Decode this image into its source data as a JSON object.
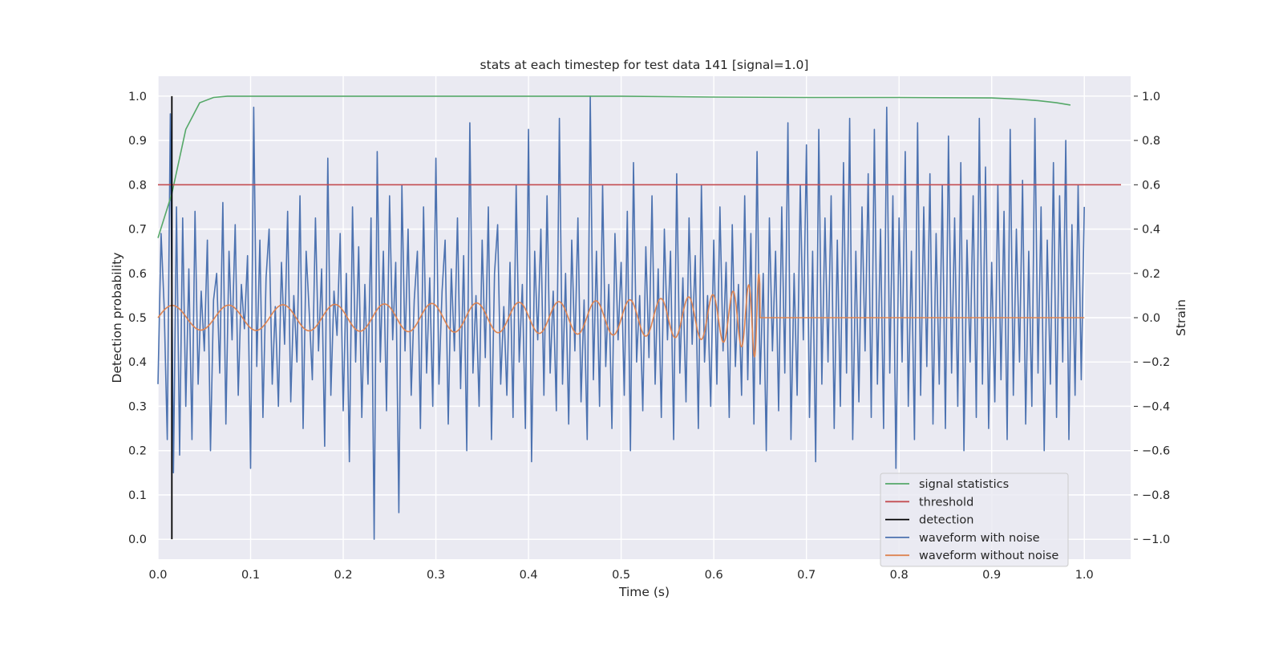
{
  "chart_data": {
    "type": "line",
    "title": "stats at each timestep for test data 141 [signal=1.0]",
    "xlabel": "Time (s)",
    "ylabel": "Detection probability",
    "ylabel_right": "Strain",
    "xlim": [
      0.0,
      1.05
    ],
    "ylim": [
      -0.045,
      1.045
    ],
    "ylim_right": [
      -1.0,
      1.0
    ],
    "x_ticks": [
      "0.0",
      "0.1",
      "0.2",
      "0.3",
      "0.4",
      "0.5",
      "0.6",
      "0.7",
      "0.8",
      "0.9",
      "1.0"
    ],
    "y_ticks": [
      "0.0",
      "0.1",
      "0.2",
      "0.3",
      "0.4",
      "0.5",
      "0.6",
      "0.7",
      "0.8",
      "0.9",
      "1.0"
    ],
    "y_ticks_right": [
      "−1.0",
      "−0.8",
      "−0.6",
      "−0.4",
      "−0.2",
      "0.0",
      "0.2",
      "0.4",
      "0.6",
      "0.8",
      "1.0"
    ],
    "grid": true,
    "legend_position": "lower-right",
    "series": [
      {
        "name": "signal statistics",
        "color": "#55a868",
        "axis": "left",
        "x": [
          0.0,
          0.015,
          0.03,
          0.045,
          0.06,
          0.075,
          0.1,
          0.2,
          0.3,
          0.4,
          0.5,
          0.6,
          0.7,
          0.8,
          0.9,
          0.93,
          0.95,
          0.97,
          0.985
        ],
        "y": [
          0.68,
          0.78,
          0.925,
          0.985,
          0.997,
          1.0,
          1.0,
          1.0,
          1.0,
          1.0,
          1.0,
          0.998,
          0.997,
          0.997,
          0.996,
          0.993,
          0.99,
          0.985,
          0.98
        ]
      },
      {
        "name": "threshold",
        "color": "#c44e52",
        "axis": "left",
        "x": [
          0.0,
          1.05
        ],
        "y": [
          0.8,
          0.8
        ]
      },
      {
        "name": "detection",
        "color": "#000000",
        "axis": "left",
        "x": [
          0.015,
          0.015
        ],
        "y": [
          0.0,
          1.0
        ]
      },
      {
        "name": "waveform with noise",
        "color": "#4c72b0",
        "axis": "right",
        "x_range": [
          0.0,
          1.0
        ],
        "y": [
          -0.3,
          0.38,
          0.05,
          -0.55,
          0.92,
          -0.7,
          0.5,
          -0.62,
          0.45,
          -0.4,
          0.22,
          -0.55,
          0.48,
          -0.3,
          0.12,
          -0.15,
          0.35,
          -0.6,
          0.08,
          0.2,
          -0.25,
          0.52,
          -0.48,
          0.3,
          -0.1,
          0.42,
          -0.35,
          0.15,
          -0.05,
          0.28,
          -0.68,
          0.95,
          -0.22,
          0.35,
          -0.45,
          0.18,
          0.4,
          -0.3,
          0.05,
          -0.4,
          0.25,
          -0.12,
          0.48,
          -0.38,
          0.1,
          -0.2,
          0.55,
          -0.5,
          0.3,
          0.02,
          -0.28,
          0.45,
          -0.15,
          0.22,
          -0.58,
          0.72,
          -0.35,
          0.12,
          -0.08,
          0.38,
          -0.42,
          0.2,
          -0.65,
          0.5,
          -0.2,
          0.32,
          -0.45,
          0.15,
          -0.3,
          0.45,
          -1.0,
          0.75,
          -0.2,
          0.3,
          -0.42,
          0.55,
          -0.1,
          0.25,
          -0.88,
          0.6,
          -0.15,
          0.4,
          -0.35,
          0.08,
          0.3,
          -0.5,
          0.5,
          -0.25,
          0.18,
          -0.4,
          0.72,
          -0.3,
          0.12,
          0.35,
          -0.48,
          0.22,
          -0.15,
          0.45,
          -0.32,
          0.28,
          -0.6,
          0.88,
          -0.25,
          0.1,
          -0.4,
          0.35,
          -0.18,
          0.5,
          -0.55,
          0.2,
          0.42,
          -0.3,
          0.05,
          -0.35,
          0.25,
          -0.45,
          0.6,
          -0.2,
          0.15,
          -0.5,
          0.85,
          -0.65,
          0.3,
          -0.1,
          0.4,
          -0.35,
          0.55,
          -0.25,
          0.12,
          -0.42,
          0.9,
          -0.3,
          0.2,
          -0.48,
          0.35,
          -0.15,
          0.45,
          -0.38,
          0.08,
          -0.55,
          1.0,
          -0.28,
          0.3,
          -0.4,
          0.6,
          -0.22,
          0.15,
          -0.5,
          0.38,
          -0.1,
          0.25,
          -0.35,
          0.48,
          -0.6,
          0.7,
          -0.2,
          0.1,
          -0.42,
          0.32,
          -0.18,
          0.55,
          -0.3,
          0.22,
          -0.45,
          0.4,
          -0.1,
          0.3,
          -0.55,
          0.65,
          -0.25,
          0.18,
          -0.38,
          0.45,
          -0.12,
          0.28,
          -0.5,
          0.6,
          -0.2,
          0.1,
          -0.4,
          0.35,
          -0.3,
          0.5,
          -0.15,
          0.25,
          -0.45,
          0.42,
          -0.22,
          0.15,
          -0.35,
          0.55,
          -0.28,
          0.38,
          -0.48,
          0.75,
          -0.3,
          0.2,
          -0.6,
          0.45,
          -0.15,
          0.3,
          -0.42,
          0.5,
          -0.25,
          0.88,
          -0.55,
          0.2,
          -0.35,
          0.6,
          -0.1,
          0.78,
          -0.45,
          0.3,
          -0.65,
          0.85,
          -0.3,
          0.45,
          -0.2,
          0.55,
          -0.5,
          0.35,
          -0.4,
          0.7,
          -0.25,
          0.9,
          -0.55,
          0.3,
          -0.38,
          0.5,
          -0.15,
          0.65,
          -0.45,
          0.85,
          -0.3,
          0.4,
          -0.5,
          0.95,
          -0.25,
          0.55,
          -0.68,
          0.45,
          -0.2,
          0.75,
          -0.4,
          0.3,
          -0.55,
          0.88,
          -0.35,
          0.5,
          -0.22,
          0.65,
          -0.48,
          0.38,
          -0.3,
          0.6,
          -0.5,
          0.82,
          -0.25,
          0.45,
          -0.4,
          0.7,
          -0.6,
          0.35,
          -0.2,
          0.55,
          -0.45,
          0.9,
          -0.3,
          0.68,
          -0.5,
          0.25,
          -0.38,
          0.6,
          -0.28,
          0.48,
          -0.55,
          0.85,
          -0.35,
          0.4,
          -0.2,
          0.62,
          -0.48,
          0.3,
          -0.4,
          0.9,
          -0.25,
          0.5,
          -0.6,
          0.35,
          -0.3,
          0.7,
          -0.45,
          0.55,
          -0.2,
          0.8,
          -0.55,
          0.42,
          -0.35,
          0.6,
          -0.28,
          0.5
        ]
      },
      {
        "name": "waveform without noise",
        "color": "#dd8452",
        "axis": "right",
        "x_range": [
          0.0,
          1.0
        ],
        "chirp_end": 0.65
      }
    ]
  }
}
